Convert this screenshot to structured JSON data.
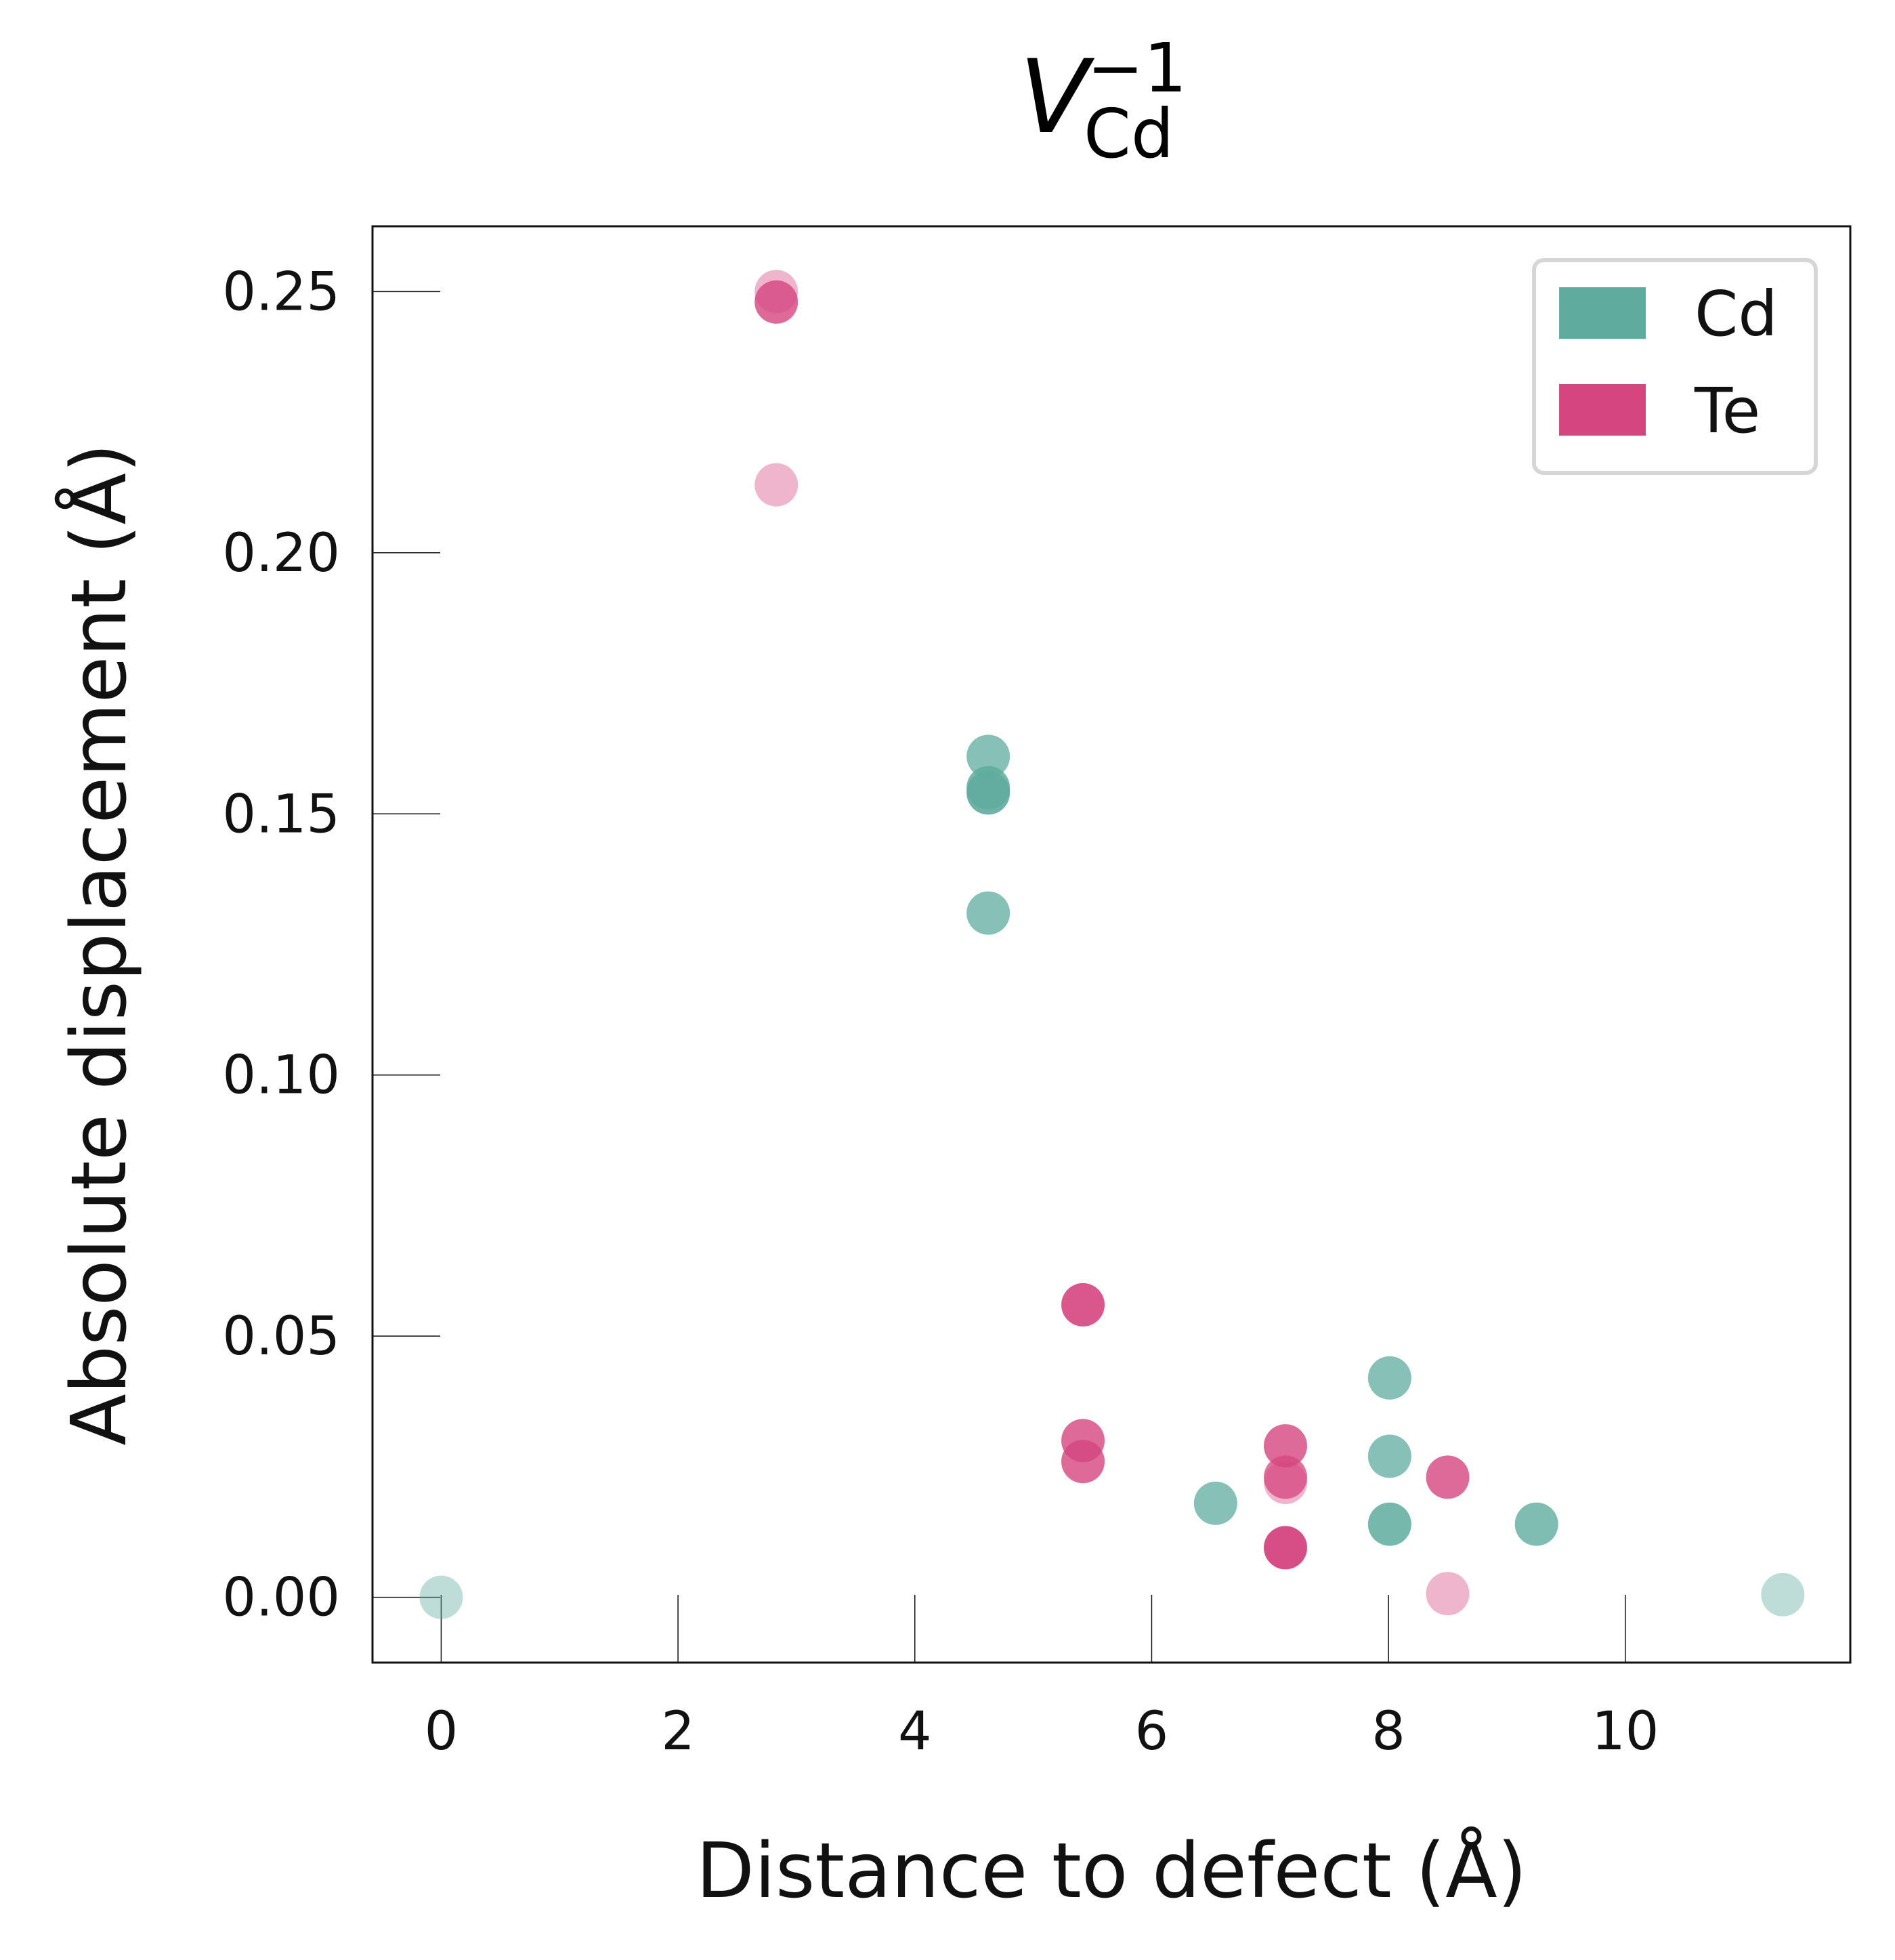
{
  "chart_data": {
    "type": "scatter",
    "title": {
      "symbol": "V",
      "superscript": "−1",
      "subscript": "Cd"
    },
    "xlabel": "Distance to defect (Å)",
    "ylabel": "Absolute displacement (Å)",
    "xlim": [
      -0.58,
      11.9
    ],
    "ylim": [
      -0.0125,
      0.2625
    ],
    "xticks": [
      0,
      2,
      4,
      6,
      8,
      10
    ],
    "xtick_labels": [
      "0",
      "2",
      "4",
      "6",
      "8",
      "10"
    ],
    "yticks": [
      0.0,
      0.05,
      0.1,
      0.15,
      0.2,
      0.25
    ],
    "ytick_labels": [
      "0.00",
      "0.05",
      "0.10",
      "0.15",
      "0.20",
      "0.25"
    ],
    "grid": false,
    "legend": {
      "position": "top-right"
    },
    "series": [
      {
        "name": "Cd",
        "color": "#5fab9e",
        "points": [
          {
            "x": 0.0,
            "y": 0.0,
            "alpha": 0.4
          },
          {
            "x": 4.62,
            "y": 0.161,
            "alpha": 0.75
          },
          {
            "x": 4.62,
            "y": 0.155,
            "alpha": 0.85
          },
          {
            "x": 4.62,
            "y": 0.154,
            "alpha": 0.9
          },
          {
            "x": 4.62,
            "y": 0.131,
            "alpha": 0.75
          },
          {
            "x": 6.54,
            "y": 0.018,
            "alpha": 0.75
          },
          {
            "x": 8.01,
            "y": 0.042,
            "alpha": 0.75
          },
          {
            "x": 8.01,
            "y": 0.027,
            "alpha": 0.75
          },
          {
            "x": 8.01,
            "y": 0.014,
            "alpha": 0.85
          },
          {
            "x": 9.25,
            "y": 0.014,
            "alpha": 0.8
          },
          {
            "x": 11.33,
            "y": 0.0005,
            "alpha": 0.4
          }
        ]
      },
      {
        "name": "Te",
        "color": "#d5457f",
        "points": [
          {
            "x": 2.83,
            "y": 0.25,
            "alpha": 0.4
          },
          {
            "x": 2.83,
            "y": 0.248,
            "alpha": 0.8
          },
          {
            "x": 2.83,
            "y": 0.213,
            "alpha": 0.4
          },
          {
            "x": 5.42,
            "y": 0.056,
            "alpha": 0.9
          },
          {
            "x": 5.42,
            "y": 0.03,
            "alpha": 0.8
          },
          {
            "x": 5.42,
            "y": 0.026,
            "alpha": 0.8
          },
          {
            "x": 7.13,
            "y": 0.029,
            "alpha": 0.8
          },
          {
            "x": 7.13,
            "y": 0.022,
            "alpha": 0.4
          },
          {
            "x": 7.13,
            "y": 0.023,
            "alpha": 0.75
          },
          {
            "x": 7.13,
            "y": 0.0095,
            "alpha": 0.95
          },
          {
            "x": 8.5,
            "y": 0.023,
            "alpha": 0.8
          },
          {
            "x": 8.5,
            "y": 0.0007,
            "alpha": 0.4
          }
        ]
      }
    ]
  }
}
